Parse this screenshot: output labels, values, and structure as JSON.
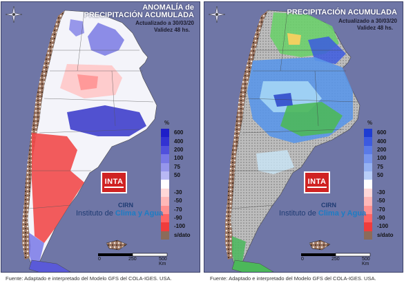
{
  "left_panel": {
    "title_line1": "ANOMALÍA de",
    "title_line2": "PRECIPITACIÓN ACUMULADA",
    "updated": "Actualizado a 30/03/20",
    "validity": "Validez 48 hs.",
    "legend_unit": "%",
    "legend": [
      {
        "label": "600",
        "color": "#1e1ec8"
      },
      {
        "label": "400",
        "color": "#3232d2"
      },
      {
        "label": "200",
        "color": "#5050dc"
      },
      {
        "label": "100",
        "color": "#7878e6"
      },
      {
        "label": "75",
        "color": "#9696ec"
      },
      {
        "label": "50",
        "color": "#b8b8f4"
      },
      {
        "label": "",
        "color": "#ffffff"
      },
      {
        "label": "-30",
        "color": "#ffd8d8"
      },
      {
        "label": "-50",
        "color": "#ffb8b8"
      },
      {
        "label": "-70",
        "color": "#ff9090"
      },
      {
        "label": "-90",
        "color": "#ff6464"
      },
      {
        "label": "-100",
        "color": "#f03c3c"
      },
      {
        "label": "s/dato",
        "color": "#8b6b5a"
      }
    ]
  },
  "right_panel": {
    "title": "PRECIPITACIÓN ACUMULADA",
    "updated": "Actualizado a 30/03/20",
    "validity": "Validez 48 hs.",
    "legend_unit": "%",
    "legend": [
      {
        "label": "600",
        "color": "#1e3cd2"
      },
      {
        "label": "400",
        "color": "#3c5ae0"
      },
      {
        "label": "200",
        "color": "#5a7ae8"
      },
      {
        "label": "100",
        "color": "#7896ee"
      },
      {
        "label": "75",
        "color": "#96b2f2"
      },
      {
        "label": "50",
        "color": "#b8cef8"
      },
      {
        "label": "",
        "color": "#ffffff"
      },
      {
        "label": "-30",
        "color": "#ffd8d8"
      },
      {
        "label": "-50",
        "color": "#ffb8b8"
      },
      {
        "label": "-70",
        "color": "#ff9090"
      },
      {
        "label": "-90",
        "color": "#ff6464"
      },
      {
        "label": "-100",
        "color": "#f03c3c"
      },
      {
        "label": "s/dato",
        "color": "#8b6b5a"
      }
    ]
  },
  "logo": {
    "inta": "INTA",
    "cirn": "CIRN",
    "institute_prefix": "Instituto de ",
    "institute_emph": "Clima y Agua"
  },
  "scale": {
    "t0": "0",
    "t1": "250",
    "t2": "500 Km"
  },
  "footer": "Fuente: Adaptado e interpretado del Modelo GFS del COLA-IGES. USA."
}
